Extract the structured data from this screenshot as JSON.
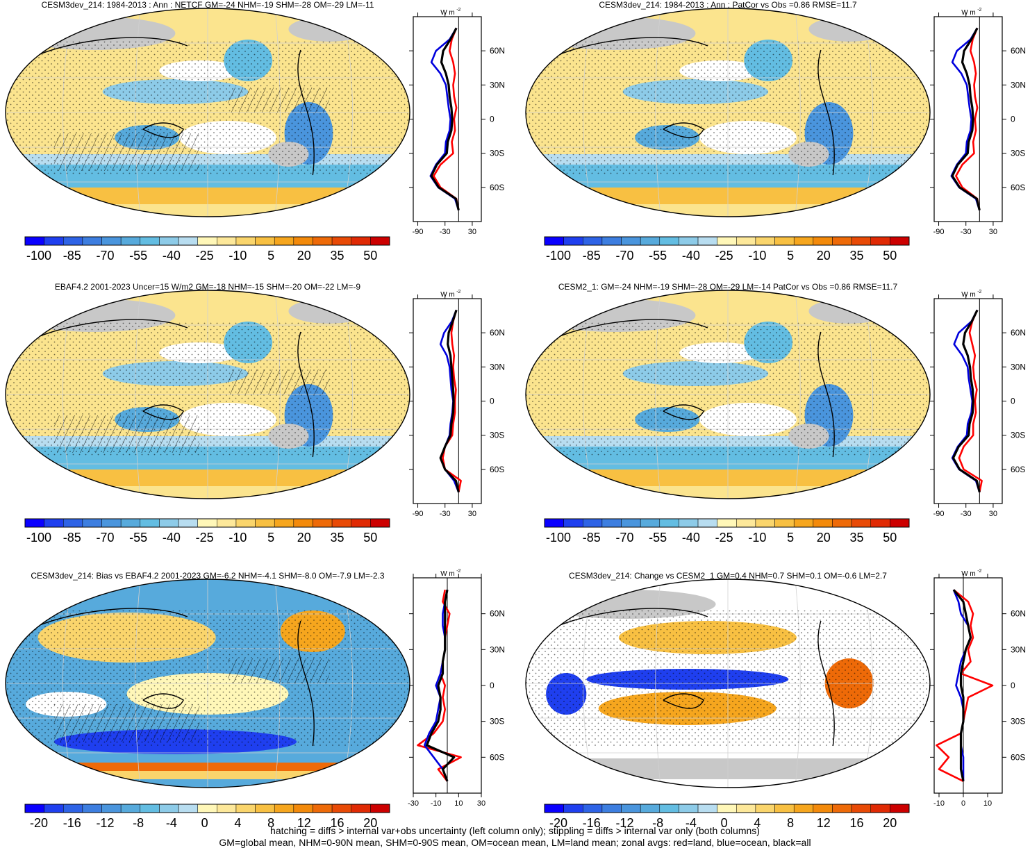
{
  "colors": {
    "ocean_stroke": "#0000dd",
    "land_stroke": "#ff0000",
    "all_stroke": "#000000",
    "land_gray": "#c8c8c8",
    "palette_neg": [
      "#0a00ff",
      "#1f3fef",
      "#2e63e6",
      "#3d7ee0",
      "#4a95dd",
      "#57aadc",
      "#63bde2",
      "#8dcbe8",
      "#b8ddf0"
    ],
    "palette_pos": [
      "#fff7b8",
      "#fde89a",
      "#fad56c",
      "#f8c042",
      "#f6a61e",
      "#f38a0b",
      "#ee6a08",
      "#e84a06",
      "#e02a04",
      "#cc0000"
    ]
  },
  "units_label": "W m",
  "units_sup": "-2",
  "panels": [
    {
      "title": "CESM3dev_214: 1984-2013 : Ann : NETCF GM=-24 NHM=-19 SHM=-28 OM=-29 LM=-11",
      "colorbar_labels": [
        "-100",
        "-85",
        "-70",
        "-55",
        "-40",
        "-25",
        "-10",
        "5",
        "20",
        "35",
        "50"
      ],
      "zonal_xticks": [
        "-90",
        "-30",
        "30"
      ],
      "hatching": true,
      "stipple": true
    },
    {
      "title": "CESM3dev_214: 1984-2013 : Ann : PatCor vs Obs =0.86 RMSE=11.7",
      "colorbar_labels": [
        "-100",
        "-85",
        "-70",
        "-55",
        "-40",
        "-25",
        "-10",
        "5",
        "20",
        "35",
        "50"
      ],
      "zonal_xticks": [
        "-90",
        "-30",
        "30"
      ],
      "hatching": false,
      "stipple": true
    },
    {
      "title": "EBAF4.2 2001-2023 Uncer=15 W/m2 GM=-18 NHM=-15 SHM=-20 OM=-22 LM=-9",
      "colorbar_labels": [
        "-100",
        "-85",
        "-70",
        "-55",
        "-40",
        "-25",
        "-10",
        "5",
        "20",
        "35",
        "50"
      ],
      "zonal_xticks": [
        "-90",
        "-30",
        "30"
      ],
      "hatching": true,
      "stipple": true
    },
    {
      "title": "CESM2_1: GM=-24 NHM=-19 SHM=-28 OM=-29 LM=-14 PatCor vs Obs =0.86 RMSE=11.7",
      "colorbar_labels": [
        "-100",
        "-85",
        "-70",
        "-55",
        "-40",
        "-25",
        "-10",
        "5",
        "20",
        "35",
        "50"
      ],
      "zonal_xticks": [
        "-90",
        "-30",
        "30"
      ],
      "hatching": false,
      "stipple": true
    },
    {
      "title": "CESM3dev_214: Bias vs EBAF4.2 2001-2023 GM=-6.2 NHM=-4.1 SHM=-8.0 OM=-7.9 LM=-2.3",
      "colorbar_labels": [
        "-20",
        "-16",
        "-12",
        "-8",
        "-4",
        "0",
        "4",
        "8",
        "12",
        "16",
        "20"
      ],
      "zonal_xticks": [
        "-30",
        "-10",
        "10",
        "30"
      ],
      "hatching": true,
      "stipple": true
    },
    {
      "title": "CESM3dev_214: Change vs CESM2_1 GM=0.4 NHM=0.7 SHM=0.1 OM=-0.6 LM=2.7",
      "colorbar_labels": [
        "-20",
        "-16",
        "-12",
        "-8",
        "-4",
        "0",
        "4",
        "8",
        "12",
        "16",
        "20"
      ],
      "zonal_xticks": [
        "-10",
        "0",
        "10"
      ],
      "hatching": false,
      "stipple": true
    }
  ],
  "footer": {
    "line1": "hatching = diffs > internal var+obs uncertainty (left column only); stippling = diffs > internal var only (both columns)",
    "line2": "GM=global mean, NHM=0-90N mean, SHM=0-90S mean, OM=ocean mean, LM=land mean; zonal avgs: red=land, blue=ocean, black=all"
  },
  "chart_data": [
    {
      "type": "line",
      "title": "CESM3dev_214: 1984-2013 : Ann : NETCF GM=-24 NHM=-19 SHM=-28 OM=-29 LM=-11",
      "y_ticks": [
        "60N",
        "30N",
        "0",
        "30S",
        "60S"
      ],
      "xlim": [
        -100,
        50
      ],
      "ylim": [
        -90,
        90
      ],
      "x_ticks": [
        -90,
        -30,
        30
      ],
      "lat": [
        -80,
        -70,
        -60,
        -50,
        -40,
        -30,
        -20,
        -10,
        0,
        10,
        20,
        30,
        40,
        50,
        60,
        70,
        80
      ],
      "series": [
        {
          "name": "red",
          "values": [
            0,
            -5,
            -40,
            -55,
            -40,
            -12,
            -15,
            -8,
            -10,
            -5,
            -10,
            -12,
            -8,
            -12,
            -20,
            -15,
            -5
          ]
        },
        {
          "name": "blue",
          "values": [
            0,
            -8,
            -45,
            -62,
            -50,
            -30,
            -28,
            -20,
            -18,
            -22,
            -25,
            -28,
            -40,
            -60,
            -50,
            -20,
            -5
          ]
        },
        {
          "name": "black",
          "values": [
            0,
            -6,
            -44,
            -60,
            -48,
            -26,
            -24,
            -16,
            -14,
            -16,
            -20,
            -22,
            -28,
            -38,
            -34,
            -18,
            -5
          ]
        }
      ]
    },
    {
      "type": "line",
      "title": "CESM3dev_214: 1984-2013 : Ann : PatCor vs Obs =0.86 RMSE=11.7",
      "y_ticks": [
        "60N",
        "30N",
        "0",
        "30S",
        "60S"
      ],
      "xlim": [
        -100,
        50
      ],
      "ylim": [
        -90,
        90
      ],
      "x_ticks": [
        -90,
        -30,
        30
      ],
      "lat": [
        -80,
        -70,
        -60,
        -50,
        -40,
        -30,
        -20,
        -10,
        0,
        10,
        20,
        30,
        40,
        50,
        60,
        70,
        80
      ],
      "series": [
        {
          "name": "red",
          "values": [
            0,
            -5,
            -38,
            -52,
            -38,
            -12,
            -14,
            -8,
            -10,
            -5,
            -10,
            -12,
            -8,
            -12,
            -20,
            -15,
            -5
          ]
        },
        {
          "name": "blue",
          "values": [
            0,
            -8,
            -45,
            -62,
            -50,
            -30,
            -28,
            -20,
            -18,
            -22,
            -25,
            -28,
            -40,
            -60,
            -50,
            -20,
            -5
          ]
        },
        {
          "name": "black",
          "values": [
            0,
            -6,
            -44,
            -60,
            -48,
            -26,
            -24,
            -16,
            -14,
            -16,
            -20,
            -22,
            -28,
            -38,
            -34,
            -18,
            -5
          ]
        }
      ]
    },
    {
      "type": "line",
      "title": "EBAF4.2 2001-2023 Uncer=15 W/m2 GM=-18 NHM=-15 SHM=-20 OM=-22 LM=-9",
      "y_ticks": [
        "60N",
        "30N",
        "0",
        "30S",
        "60S"
      ],
      "xlim": [
        -100,
        50
      ],
      "ylim": [
        -90,
        90
      ],
      "x_ticks": [
        -90,
        -30,
        30
      ],
      "lat": [
        -80,
        -70,
        -60,
        -50,
        -40,
        -30,
        -20,
        -10,
        0,
        10,
        20,
        30,
        40,
        50,
        60,
        70,
        80
      ],
      "series": [
        {
          "name": "red",
          "values": [
            0,
            5,
            -30,
            -35,
            -30,
            -14,
            -12,
            -8,
            -8,
            -6,
            -10,
            -12,
            -10,
            -14,
            -16,
            -12,
            -5
          ]
        },
        {
          "name": "blue",
          "values": [
            0,
            -10,
            -30,
            -40,
            -30,
            -20,
            -18,
            -14,
            -12,
            -16,
            -18,
            -20,
            -26,
            -40,
            -32,
            -15,
            -5
          ]
        },
        {
          "name": "black",
          "values": [
            0,
            -6,
            -30,
            -40,
            -30,
            -18,
            -16,
            -12,
            -11,
            -12,
            -14,
            -16,
            -18,
            -24,
            -22,
            -13,
            -5
          ]
        }
      ]
    },
    {
      "type": "line",
      "title": "CESM2_1: GM=-24 NHM=-19 SHM=-28 OM=-29 LM=-14 PatCor vs Obs =0.86 RMSE=11.7",
      "y_ticks": [
        "60N",
        "30N",
        "0",
        "30S",
        "60S"
      ],
      "xlim": [
        -100,
        50
      ],
      "ylim": [
        -90,
        90
      ],
      "x_ticks": [
        -90,
        -30,
        30
      ],
      "lat": [
        -80,
        -70,
        -60,
        -50,
        -40,
        -30,
        -20,
        -10,
        0,
        10,
        20,
        30,
        40,
        50,
        60,
        70,
        80
      ],
      "series": [
        {
          "name": "red",
          "values": [
            0,
            5,
            -35,
            -45,
            -35,
            -14,
            -14,
            -8,
            -10,
            -6,
            -12,
            -14,
            -10,
            -16,
            -22,
            -16,
            -5
          ]
        },
        {
          "name": "blue",
          "values": [
            0,
            -8,
            -45,
            -60,
            -48,
            -28,
            -26,
            -18,
            -16,
            -20,
            -24,
            -26,
            -38,
            -56,
            -46,
            -18,
            -5
          ]
        },
        {
          "name": "black",
          "values": [
            0,
            -6,
            -44,
            -58,
            -46,
            -24,
            -22,
            -15,
            -14,
            -15,
            -19,
            -21,
            -26,
            -36,
            -32,
            -17,
            -5
          ]
        }
      ]
    },
    {
      "type": "line",
      "title": "CESM3dev_214: Bias vs EBAF4.2 2001-2023 GM=-6.2 NHM=-4.1 SHM=-8.0 OM=-7.9 LM=-2.3",
      "y_ticks": [
        "60N",
        "30N",
        "0",
        "30S",
        "60S"
      ],
      "xlim": [
        -30,
        30
      ],
      "ylim": [
        -90,
        90
      ],
      "x_ticks": [
        -30,
        -10,
        10,
        30
      ],
      "lat": [
        -80,
        -70,
        -60,
        -50,
        -40,
        -30,
        -20,
        -10,
        0,
        10,
        20,
        30,
        40,
        50,
        60,
        70,
        80
      ],
      "series": [
        {
          "name": "red",
          "values": [
            0,
            -8,
            12,
            -26,
            -12,
            -4,
            -2,
            -4,
            -2,
            -6,
            -4,
            -2,
            -2,
            0,
            2,
            -4,
            -2
          ]
        },
        {
          "name": "blue",
          "values": [
            0,
            -4,
            -12,
            -20,
            -16,
            -10,
            -8,
            -6,
            -10,
            -6,
            -4,
            -2,
            -2,
            -4,
            -4,
            -2,
            0
          ]
        },
        {
          "name": "black",
          "values": [
            0,
            -4,
            6,
            -18,
            -14,
            -8,
            -6,
            -6,
            -8,
            -4,
            -4,
            -2,
            -2,
            -2,
            -2,
            -2,
            0
          ]
        }
      ]
    },
    {
      "type": "line",
      "title": "CESM3dev_214: Change vs CESM2_1 GM=0.4 NHM=0.7 SHM=0.1 OM=-0.6 LM=2.7",
      "y_ticks": [
        "60N",
        "30N",
        "0",
        "30S",
        "60S"
      ],
      "xlim": [
        -12,
        16
      ],
      "ylim": [
        -90,
        90
      ],
      "x_ticks": [
        -10,
        0,
        10
      ],
      "lat": [
        -80,
        -70,
        -60,
        -50,
        -40,
        -30,
        -20,
        -10,
        0,
        10,
        20,
        30,
        40,
        50,
        60,
        70,
        80
      ],
      "series": [
        {
          "name": "red",
          "values": [
            0,
            -10,
            -6,
            -11,
            -1,
            0,
            1,
            2,
            12,
            -1,
            3,
            2,
            4,
            3,
            4,
            2,
            -4
          ]
        },
        {
          "name": "blue",
          "values": [
            0,
            0,
            0,
            -1,
            -1,
            0,
            0,
            -1,
            -3,
            -2,
            -1,
            1,
            3,
            2,
            -1,
            -2,
            -4
          ]
        },
        {
          "name": "black",
          "values": [
            0,
            -1,
            -1,
            -1,
            -1,
            0,
            0,
            0,
            -1,
            -1,
            0,
            1,
            3,
            2,
            1,
            0,
            -4
          ]
        }
      ]
    }
  ]
}
